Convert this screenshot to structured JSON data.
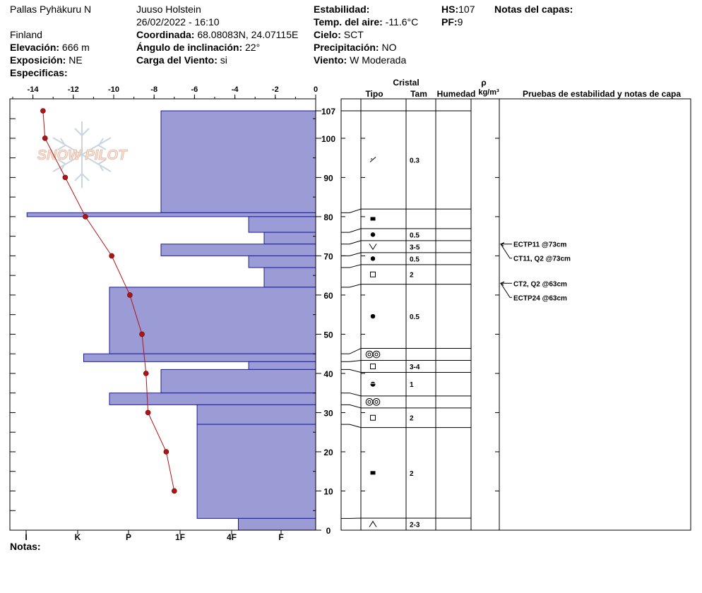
{
  "header": {
    "location": "Pallas Pyhäkuru N",
    "country": "Finland",
    "elevation_label": "Elevación:",
    "elevation": "666 m",
    "aspect_label": "Exposición:",
    "aspect": "NE",
    "specifics_label": "Especificas:",
    "observer": "Juuso Holstein",
    "datetime": "26/02/2022 - 16:10",
    "coords_label": "Coordinada:",
    "coords": "68.08083N, 24.07115E",
    "slope_label": "Ángulo de inclinación:",
    "slope": "22°",
    "wind_load_label": "Carga del Viento:",
    "wind_load": "si",
    "stability_label": "Estabilidad:",
    "air_temp_label": "Temp. del aire:",
    "air_temp": "-11.6°C",
    "sky_label": "Cielo:",
    "sky": "SCT",
    "precip_label": "Precipitación:",
    "precip": "NO",
    "wind_label": "Viento:",
    "wind": "W Moderada",
    "hs_label": "HS:",
    "hs": "107",
    "pf_label": "PF:",
    "pf": "9",
    "layer_notes_label": "Notas del capas:",
    "notes_label": "Notas:"
  },
  "watermark": "SNOW PILOT",
  "columns": {
    "crystal": "Cristal",
    "type": "Tipo",
    "size": "Tam",
    "moisture": "Humedad",
    "rho": "ρ",
    "density_unit": "kg/m³",
    "tests_notes": "Pruebas de estabilidad y notas de capa"
  },
  "chart_data": {
    "type": "snow_profile",
    "temperature_axis": {
      "ticks": [
        -14,
        -12,
        -10,
        -8,
        -6,
        -4,
        -2,
        0
      ],
      "range": [
        -15.2,
        0
      ]
    },
    "hardness_axis": {
      "ticks": [
        "I",
        "K",
        "P",
        "1F",
        "4F",
        "F"
      ]
    },
    "height_axis": {
      "ticks": [
        0,
        10,
        20,
        30,
        40,
        50,
        60,
        70,
        80,
        90,
        100,
        107
      ],
      "range": [
        0,
        107
      ]
    },
    "temperature_profile": [
      {
        "h": 107,
        "t": -13.5
      },
      {
        "h": 100,
        "t": -13.4
      },
      {
        "h": 90,
        "t": -12.4
      },
      {
        "h": 80,
        "t": -11.4
      },
      {
        "h": 70,
        "t": -10.1
      },
      {
        "h": 60,
        "t": -9.2
      },
      {
        "h": 50,
        "t": -8.6
      },
      {
        "h": 40,
        "t": -8.4
      },
      {
        "h": 30,
        "t": -8.3
      },
      {
        "h": 20,
        "t": -7.4
      },
      {
        "h": 10,
        "t": -7.0
      }
    ],
    "hardness_layers": [
      {
        "top": 107,
        "bottom": 81,
        "hardness": 3.0
      },
      {
        "top": 81,
        "bottom": 80,
        "hardness": 5.6
      },
      {
        "top": 80,
        "bottom": 76,
        "hardness": 1.3
      },
      {
        "top": 76,
        "bottom": 73,
        "hardness": 1.0
      },
      {
        "top": 73,
        "bottom": 70,
        "hardness": 3.0
      },
      {
        "top": 70,
        "bottom": 67,
        "hardness": 1.3
      },
      {
        "top": 67,
        "bottom": 62,
        "hardness": 1.0
      },
      {
        "top": 62,
        "bottom": 45,
        "hardness": 4.0
      },
      {
        "top": 45,
        "bottom": 43,
        "hardness": 4.5
      },
      {
        "top": 43,
        "bottom": 41,
        "hardness": 1.3
      },
      {
        "top": 41,
        "bottom": 35,
        "hardness": 3.0
      },
      {
        "top": 35,
        "bottom": 32,
        "hardness": 4.0
      },
      {
        "top": 32,
        "bottom": 27,
        "hardness": 2.3
      },
      {
        "top": 27,
        "bottom": 3,
        "hardness": 2.3
      },
      {
        "top": 3,
        "bottom": 0,
        "hardness": 1.5
      }
    ],
    "layers": [
      {
        "top": 107,
        "bottom": 81,
        "symbol": "decomposing",
        "size": "0.3"
      },
      {
        "top": 81,
        "bottom": 76,
        "symbol": "melt-freeze",
        "size": ""
      },
      {
        "top": 76,
        "bottom": 73,
        "symbol": "rounded",
        "size": "0.5"
      },
      {
        "top": 73,
        "bottom": 70,
        "symbol": "surface-hoar",
        "size": "3-5"
      },
      {
        "top": 70,
        "bottom": 67,
        "symbol": "rounded",
        "size": "0.5"
      },
      {
        "top": 67,
        "bottom": 62,
        "symbol": "faceted",
        "size": "2"
      },
      {
        "top": 62,
        "bottom": 45,
        "symbol": "rounded",
        "size": "0.5"
      },
      {
        "top": 45,
        "bottom": 43,
        "symbol": "ice-layer",
        "size": ""
      },
      {
        "top": 43,
        "bottom": 41,
        "symbol": "faceted",
        "size": "3-4"
      },
      {
        "top": 41,
        "bottom": 35,
        "symbol": "rounding-facet",
        "size": "1"
      },
      {
        "top": 35,
        "bottom": 32,
        "symbol": "ice-layer",
        "size": ""
      },
      {
        "top": 32,
        "bottom": 27,
        "symbol": "faceted",
        "size": "2"
      },
      {
        "top": 27,
        "bottom": 3,
        "symbol": "melt-freeze",
        "size": "2"
      },
      {
        "top": 3,
        "bottom": 0,
        "symbol": "depth-hoar",
        "size": "2-3"
      }
    ],
    "tests": [
      {
        "h": 73,
        "label": "ECTP11 @73cm",
        "dy": 0
      },
      {
        "h": 73,
        "label": "CT11, Q2 @73cm",
        "dy": 20
      },
      {
        "h": 63,
        "label": "CT2, Q2 @63cm",
        "dy": 0
      },
      {
        "h": 63,
        "label": "ECTP24 @63cm",
        "dy": 20
      }
    ]
  },
  "colors": {
    "hardness_fill": "#9b9bd6",
    "hardness_stroke": "#1a1aa0",
    "temperature": "#b01515"
  }
}
